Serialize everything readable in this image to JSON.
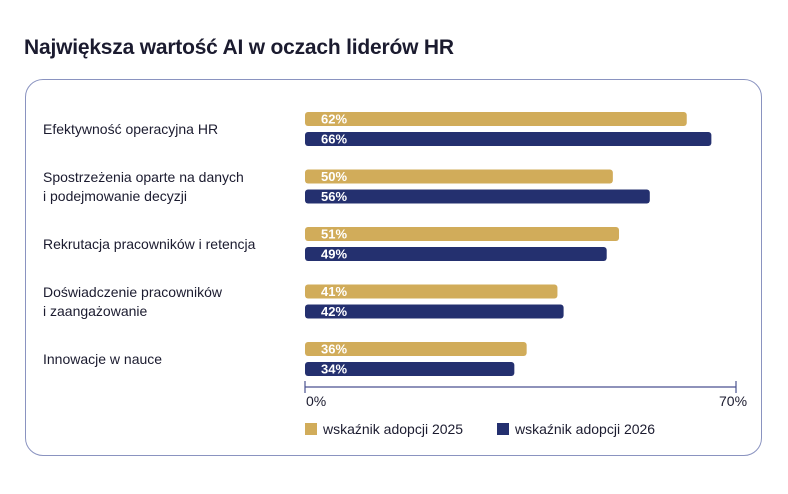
{
  "title": "Największa wartość AI w oczach liderów HR",
  "colors": {
    "series_2025": "#d1ac5a",
    "series_2026": "#24306f",
    "axis": "#4a5290"
  },
  "chart_data": {
    "type": "bar",
    "orientation": "horizontal",
    "categories": [
      [
        "Efektywność operacyjna HR"
      ],
      [
        "Spostrzeżenia oparte na danych",
        "i podejmowanie decyzji"
      ],
      [
        "Rekrutacja pracowników i retencja"
      ],
      [
        "Doświadczenie pracowników",
        "i zaangażowanie"
      ],
      [
        "Innowacje w nauce"
      ]
    ],
    "series": [
      {
        "name": "wskaźnik adopcji 2025",
        "values": [
          62,
          50,
          51,
          41,
          36
        ],
        "labels": [
          "62%",
          "50%",
          "51%",
          "41%",
          "36%"
        ]
      },
      {
        "name": "wskaźnik adopcji 2026",
        "values": [
          66,
          56,
          49,
          42,
          34
        ],
        "labels": [
          "66%",
          "56%",
          "49%",
          "42%",
          "34%"
        ]
      }
    ],
    "xlim": [
      0,
      70
    ],
    "tick_labels": [
      "0%",
      "70%"
    ],
    "legend_position": "bottom"
  }
}
